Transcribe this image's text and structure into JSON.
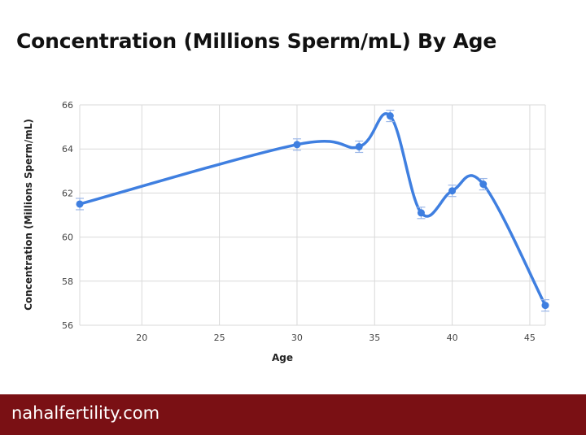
{
  "header": {
    "title": "Concentration (Millions Sperm/mL) By Age"
  },
  "footer": {
    "site": "nahalfertility.com"
  },
  "colors": {
    "line": "#3f7fe0",
    "grid": "#d9d9d9",
    "footer_bg": "#7a1014"
  },
  "chart_data": {
    "type": "line",
    "title": "Concentration (Millions Sperm/mL) By Age",
    "xlabel": "Age",
    "ylabel": "Concentration (Millions Sperm/mL)",
    "xlim": [
      16,
      46
    ],
    "ylim": [
      56,
      66
    ],
    "xticks": [
      20,
      25,
      30,
      35,
      40,
      45
    ],
    "yticks": [
      56,
      58,
      60,
      62,
      64,
      66
    ],
    "grid": true,
    "smooth": true,
    "error_bars": true,
    "series": [
      {
        "x": [
          16,
          30,
          34,
          36,
          38,
          40,
          42,
          46
        ],
        "y": [
          61.5,
          64.2,
          64.1,
          65.5,
          61.1,
          62.1,
          62.4,
          56.9
        ]
      }
    ]
  }
}
